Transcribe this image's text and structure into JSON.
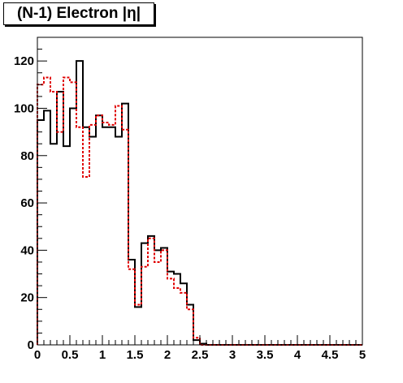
{
  "chart_data": {
    "type": "step",
    "title": "(N-1) Electron |η|",
    "xlabel": "",
    "ylabel": "",
    "xlim": [
      0,
      5
    ],
    "ylim": [
      0,
      130
    ],
    "x_ticks": [
      "0",
      "0.5",
      "1",
      "1.5",
      "2",
      "2.5",
      "3",
      "3.5",
      "4",
      "4.5",
      "5"
    ],
    "y_ticks": [
      "0",
      "20",
      "40",
      "60",
      "80",
      "100",
      "120"
    ],
    "bin_width": 0.1,
    "colors": {
      "black_series": "#000000",
      "red_series": "#e00000"
    },
    "series": [
      {
        "style": "solid-black",
        "values": [
          95,
          99,
          85,
          107,
          84,
          100,
          120,
          92,
          88,
          97,
          92,
          92,
          88,
          102,
          36,
          16,
          43,
          46,
          40,
          41,
          31,
          30,
          26,
          17,
          2,
          0.5,
          0,
          0,
          0,
          0,
          0,
          0,
          0,
          0,
          0,
          0,
          0,
          0,
          0,
          0,
          0,
          0,
          0,
          0,
          0,
          0,
          0,
          0,
          0,
          0
        ]
      },
      {
        "style": "dashed-red",
        "values": [
          110,
          113,
          107,
          90,
          113,
          111,
          92,
          71,
          93,
          97,
          94,
          93,
          101,
          91,
          32,
          17,
          33,
          45,
          35,
          40,
          28,
          24,
          22,
          15,
          3,
          0,
          0,
          0,
          0,
          0,
          0,
          0,
          0,
          0,
          0,
          0,
          0,
          0,
          0,
          0,
          0,
          0,
          0,
          0,
          0,
          0,
          0,
          0,
          0,
          0
        ]
      }
    ]
  }
}
